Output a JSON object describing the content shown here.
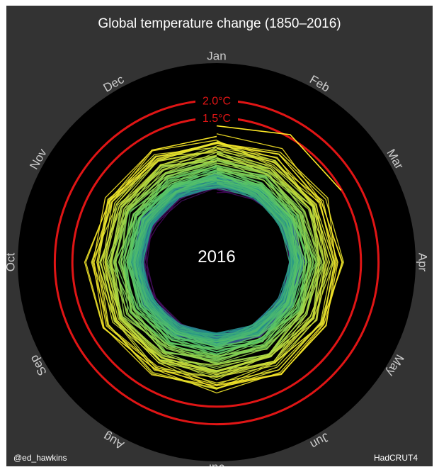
{
  "chart_data": {
    "type": "radial-line",
    "title": "Global temperature change (1850–2016)",
    "months": [
      "Jan",
      "Feb",
      "Mar",
      "Apr",
      "May",
      "Jun",
      "Jul",
      "Aug",
      "Sep",
      "Oct",
      "Nov",
      "Dec"
    ],
    "rings": [
      {
        "label": "2.0°C",
        "value": 2.0,
        "color": "#e01515"
      },
      {
        "label": "1.5°C",
        "value": 1.5,
        "color": "#e01515"
      }
    ],
    "radial_range": [
      -1.6,
      2.35
    ],
    "year_range": [
      1850,
      2016
    ],
    "current_year_label": "2016",
    "colormap": "viridis",
    "colormap_stops": [
      "#440154",
      "#3b528b",
      "#21918c",
      "#5ec962",
      "#fde725"
    ],
    "final_segment": {
      "year": 2016,
      "months_shown": [
        "Jan",
        "Feb",
        "Mar"
      ],
      "values": [
        1.27,
        1.58,
        1.48
      ]
    },
    "credit_left": "@ed_hawkins",
    "credit_right": "HadCRUT4"
  },
  "colors": {
    "panel_background": "#333333",
    "plot_disc": "#000000",
    "text": "#ffffff",
    "month_text": "#cccccc",
    "ring": "#e01515"
  }
}
